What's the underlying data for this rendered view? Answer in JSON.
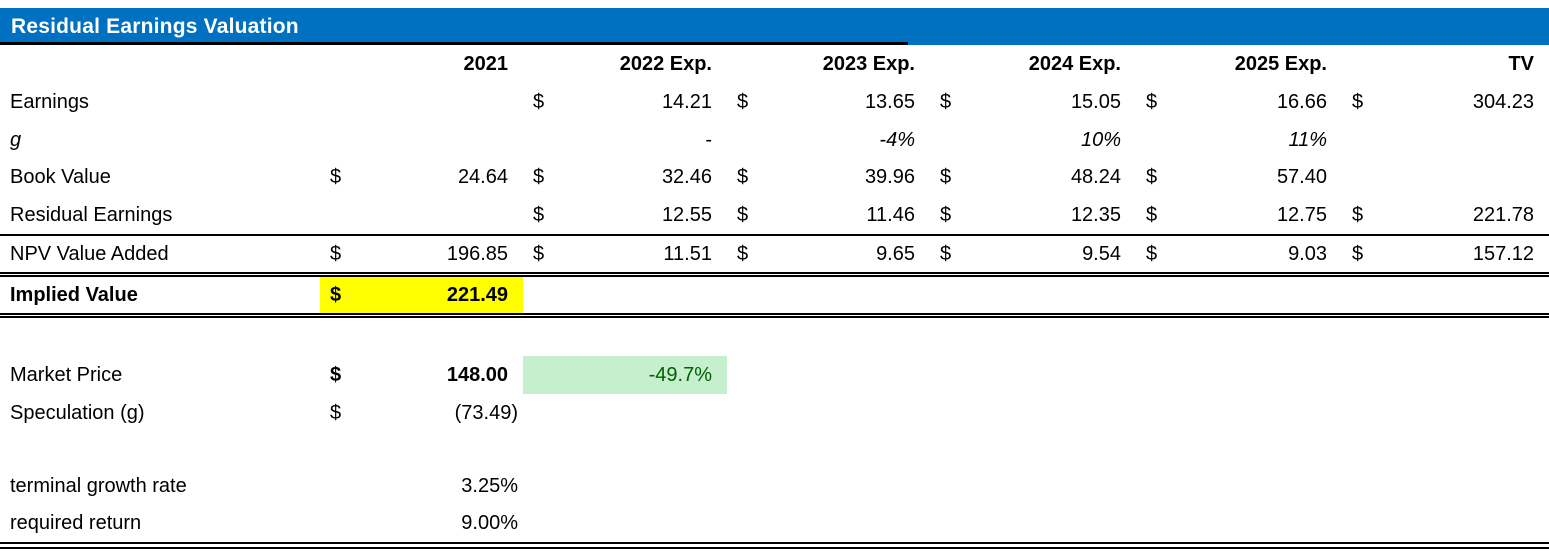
{
  "title": "Residual Earnings Valuation",
  "colors": {
    "title_bg": "#0070C0",
    "title_text": "#FFFFFF",
    "highlight_yellow": "#FFFF00",
    "good_cell_bg": "#C6EFCE",
    "good_cell_text": "#006100"
  },
  "table": {
    "currency": "$",
    "headers": {
      "y2021": "2021",
      "y2022": "2022 Exp.",
      "y2023": "2023 Exp.",
      "y2024": "2024 Exp.",
      "y2025": "2025 Exp.",
      "tv": "TV"
    },
    "rows": {
      "earnings": {
        "label": "Earnings",
        "v2022": "14.21",
        "v2023": "13.65",
        "v2024": "15.05",
        "v2025": "16.66",
        "tv": "304.23"
      },
      "g": {
        "label": "g",
        "v2022": "-",
        "v2023": "-4%",
        "v2024": "10%",
        "v2025": "11%"
      },
      "book_value": {
        "label": "Book Value",
        "v2021": "24.64",
        "v2022": "32.46",
        "v2023": "39.96",
        "v2024": "48.24",
        "v2025": "57.40"
      },
      "residual_earnings": {
        "label": "Residual Earnings",
        "v2022": "12.55",
        "v2023": "11.46",
        "v2024": "12.35",
        "v2025": "12.75",
        "tv": "221.78"
      },
      "npv_value_added": {
        "label": "NPV Value Added",
        "v2021": "196.85",
        "v2022": "11.51",
        "v2023": "9.65",
        "v2024": "9.54",
        "v2025": "9.03",
        "tv": "157.12"
      },
      "implied_value": {
        "label": "Implied Value",
        "v2021": "221.49"
      },
      "market_price": {
        "label": "Market Price",
        "v2021": "148.00",
        "discount_vs_implied": "-49.7%"
      },
      "speculation": {
        "label": "Speculation (g)",
        "v2021": "(73.49)"
      },
      "terminal_growth": {
        "label": "terminal growth rate",
        "value": "3.25%"
      },
      "required_return": {
        "label": "required return",
        "value": "9.00%"
      }
    }
  }
}
